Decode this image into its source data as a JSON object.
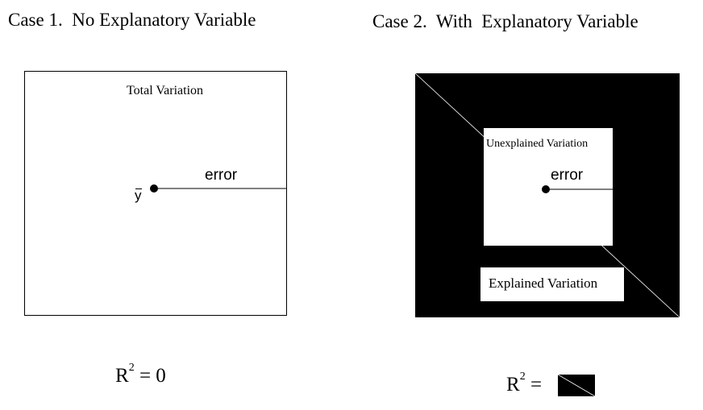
{
  "case1": {
    "title": "Case 1.  No Explanatory Variable",
    "box_label": "Total Variation",
    "error_label": "error",
    "mean_symbol": "y",
    "formula": {
      "lhs": "R",
      "exponent": "2",
      "rhs": " = 0"
    }
  },
  "case2": {
    "title": "Case 2.  With  Explanatory Variable",
    "unexplained_label": "Unexplained Variation",
    "error_label": "error",
    "explained_label": "Explained Variation",
    "formula": {
      "lhs": "R",
      "exponent": "2",
      "rhs": " = "
    }
  },
  "colors": {
    "fill": "#000000",
    "background": "#ffffff"
  }
}
